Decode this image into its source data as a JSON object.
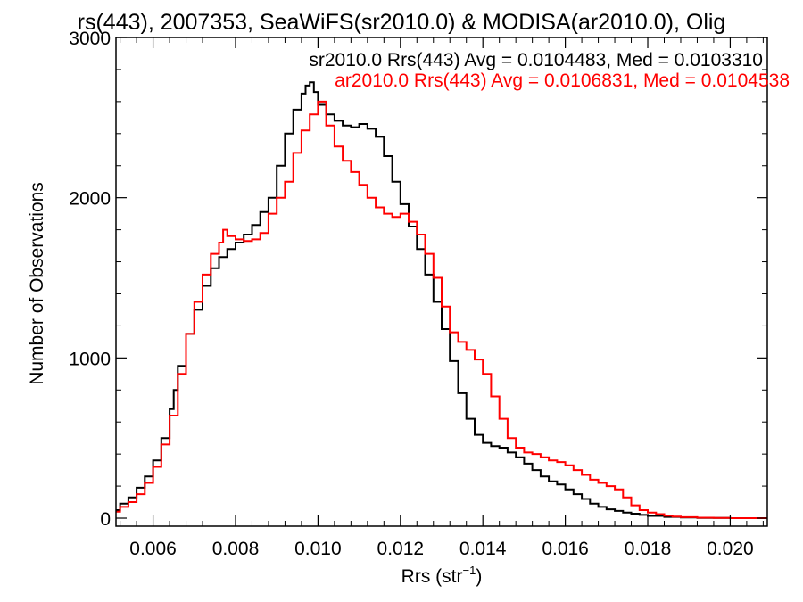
{
  "chart_data": {
    "type": "line",
    "title": "rs(443), 2007353, SeaWiFS(sr2010.0) & MODISA(ar2010.0), Olig",
    "xlabel_main": "Rrs (str",
    "xlabel_sup": "−1",
    "xlabel_tail": ")",
    "ylabel": "Number of Observations",
    "xlim": [
      0.0051,
      0.0209
    ],
    "ylim": [
      -50,
      3000
    ],
    "x_ticks": [
      "0.006",
      "0.008",
      "0.010",
      "0.012",
      "0.014",
      "0.016",
      "0.018",
      "0.020"
    ],
    "x_tick_values": [
      0.006,
      0.008,
      0.01,
      0.012,
      0.014,
      0.016,
      0.018,
      0.02
    ],
    "y_ticks": [
      "0",
      "1000",
      "2000",
      "3000"
    ],
    "y_tick_values": [
      0,
      1000,
      2000,
      3000
    ],
    "grid": false,
    "legend_placement": "top-right",
    "series": [
      {
        "name": "sr2010.0 Rrs(443) Avg = 0.0104483, Med = 0.0103310",
        "color": "#000000",
        "points": [
          [
            0.0051,
            50
          ],
          [
            0.0052,
            90
          ],
          [
            0.0054,
            130
          ],
          [
            0.0056,
            190
          ],
          [
            0.0058,
            260
          ],
          [
            0.006,
            360
          ],
          [
            0.0062,
            500
          ],
          [
            0.0064,
            680
          ],
          [
            0.0065,
            800
          ],
          [
            0.0066,
            950
          ],
          [
            0.0068,
            1150
          ],
          [
            0.007,
            1300
          ],
          [
            0.0072,
            1450
          ],
          [
            0.0074,
            1560
          ],
          [
            0.0076,
            1630
          ],
          [
            0.0078,
            1680
          ],
          [
            0.008,
            1720
          ],
          [
            0.0082,
            1770
          ],
          [
            0.0084,
            1830
          ],
          [
            0.0086,
            1910
          ],
          [
            0.0088,
            2000
          ],
          [
            0.009,
            2200
          ],
          [
            0.0092,
            2400
          ],
          [
            0.0094,
            2550
          ],
          [
            0.0096,
            2650
          ],
          [
            0.0097,
            2700
          ],
          [
            0.0098,
            2720
          ],
          [
            0.0099,
            2660
          ],
          [
            0.01,
            2580
          ],
          [
            0.0102,
            2520
          ],
          [
            0.0104,
            2480
          ],
          [
            0.0106,
            2450
          ],
          [
            0.0108,
            2440
          ],
          [
            0.011,
            2460
          ],
          [
            0.0112,
            2430
          ],
          [
            0.0114,
            2380
          ],
          [
            0.0116,
            2260
          ],
          [
            0.0118,
            2100
          ],
          [
            0.012,
            1960
          ],
          [
            0.0122,
            1820
          ],
          [
            0.0124,
            1680
          ],
          [
            0.0126,
            1520
          ],
          [
            0.0128,
            1350
          ],
          [
            0.013,
            1180
          ],
          [
            0.0132,
            980
          ],
          [
            0.0134,
            780
          ],
          [
            0.0136,
            620
          ],
          [
            0.0138,
            520
          ],
          [
            0.014,
            470
          ],
          [
            0.0142,
            450
          ],
          [
            0.0144,
            440
          ],
          [
            0.0146,
            410
          ],
          [
            0.0148,
            380
          ],
          [
            0.015,
            340
          ],
          [
            0.0152,
            300
          ],
          [
            0.0154,
            260
          ],
          [
            0.0156,
            230
          ],
          [
            0.0158,
            210
          ],
          [
            0.016,
            180
          ],
          [
            0.0162,
            150
          ],
          [
            0.0164,
            120
          ],
          [
            0.0166,
            90
          ],
          [
            0.0168,
            70
          ],
          [
            0.017,
            55
          ],
          [
            0.0172,
            45
          ],
          [
            0.0174,
            35
          ],
          [
            0.0176,
            28
          ],
          [
            0.0178,
            20
          ],
          [
            0.018,
            14
          ],
          [
            0.0184,
            8
          ],
          [
            0.0188,
            4
          ],
          [
            0.0192,
            2
          ],
          [
            0.0196,
            1
          ],
          [
            0.02,
            0
          ],
          [
            0.0209,
            0
          ]
        ]
      },
      {
        "name": "ar2010.0 Rrs(443) Avg = 0.0106831, Med = 0.0104538",
        "color": "#ff0000",
        "points": [
          [
            0.0051,
            40
          ],
          [
            0.0052,
            70
          ],
          [
            0.0054,
            100
          ],
          [
            0.0056,
            150
          ],
          [
            0.0058,
            220
          ],
          [
            0.006,
            320
          ],
          [
            0.0062,
            460
          ],
          [
            0.0064,
            640
          ],
          [
            0.0066,
            900
          ],
          [
            0.0068,
            1150
          ],
          [
            0.007,
            1350
          ],
          [
            0.0072,
            1520
          ],
          [
            0.0074,
            1650
          ],
          [
            0.0076,
            1720
          ],
          [
            0.0077,
            1800
          ],
          [
            0.0078,
            1760
          ],
          [
            0.008,
            1740
          ],
          [
            0.0082,
            1730
          ],
          [
            0.0084,
            1740
          ],
          [
            0.0086,
            1780
          ],
          [
            0.0088,
            1900
          ],
          [
            0.009,
            2000
          ],
          [
            0.0092,
            2100
          ],
          [
            0.0094,
            2280
          ],
          [
            0.0096,
            2420
          ],
          [
            0.0098,
            2520
          ],
          [
            0.01,
            2600
          ],
          [
            0.0102,
            2450
          ],
          [
            0.0104,
            2320
          ],
          [
            0.0106,
            2230
          ],
          [
            0.0108,
            2160
          ],
          [
            0.011,
            2080
          ],
          [
            0.0112,
            2000
          ],
          [
            0.0114,
            1940
          ],
          [
            0.0116,
            1900
          ],
          [
            0.0118,
            1880
          ],
          [
            0.012,
            1900
          ],
          [
            0.0122,
            1850
          ],
          [
            0.0124,
            1770
          ],
          [
            0.0126,
            1650
          ],
          [
            0.0128,
            1500
          ],
          [
            0.013,
            1320
          ],
          [
            0.0132,
            1160
          ],
          [
            0.0134,
            1100
          ],
          [
            0.0136,
            1050
          ],
          [
            0.0138,
            990
          ],
          [
            0.014,
            900
          ],
          [
            0.0142,
            760
          ],
          [
            0.0144,
            620
          ],
          [
            0.0146,
            500
          ],
          [
            0.0148,
            440
          ],
          [
            0.015,
            410
          ],
          [
            0.0152,
            400
          ],
          [
            0.0154,
            380
          ],
          [
            0.0156,
            360
          ],
          [
            0.0158,
            350
          ],
          [
            0.016,
            330
          ],
          [
            0.0162,
            300
          ],
          [
            0.0164,
            270
          ],
          [
            0.0166,
            240
          ],
          [
            0.0168,
            220
          ],
          [
            0.017,
            200
          ],
          [
            0.0172,
            180
          ],
          [
            0.0174,
            130
          ],
          [
            0.0176,
            80
          ],
          [
            0.0178,
            50
          ],
          [
            0.018,
            35
          ],
          [
            0.0182,
            25
          ],
          [
            0.0184,
            15
          ],
          [
            0.0186,
            10
          ],
          [
            0.0188,
            6
          ],
          [
            0.0192,
            3
          ],
          [
            0.0196,
            1
          ],
          [
            0.02,
            0
          ],
          [
            0.0209,
            0
          ]
        ]
      }
    ]
  }
}
